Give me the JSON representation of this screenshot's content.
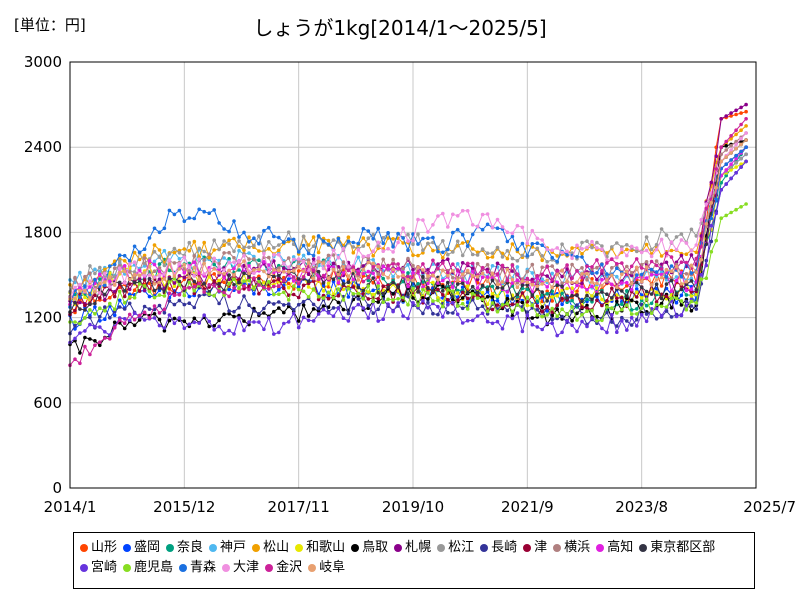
{
  "unit_label": "[単位：円]",
  "chart_data": {
    "type": "line",
    "title": "しょうが1kg[2014/1〜2025/5]",
    "xlabel": "",
    "ylabel": "",
    "x_start": "2014/1",
    "x_end": "2025/5",
    "x_axis_range": [
      "2014/1",
      "2025/7"
    ],
    "xticks": [
      "2014/1",
      "2015/12",
      "2017/11",
      "2019/10",
      "2021/9",
      "2023/8",
      "2025/7"
    ],
    "ylim": [
      0,
      3000
    ],
    "yticks": [
      0,
      600,
      1200,
      1800,
      2400,
      3000
    ],
    "grid": true,
    "legend_position": "bottom",
    "series": [
      {
        "name": "山形",
        "color": "#ff4500",
        "anchors": [
          [
            0,
            1260
          ],
          [
            6,
            1360
          ],
          [
            12,
            1400
          ],
          [
            24,
            1440
          ],
          [
            36,
            1470
          ],
          [
            48,
            1460
          ],
          [
            60,
            1480
          ],
          [
            72,
            1440
          ],
          [
            84,
            1420
          ],
          [
            96,
            1380
          ],
          [
            110,
            1420
          ],
          [
            126,
            1500
          ],
          [
            131,
            2600
          ],
          [
            136,
            2650
          ]
        ]
      },
      {
        "name": "盛岡",
        "color": "#0044ff",
        "anchors": [
          [
            0,
            1180
          ],
          [
            6,
            1240
          ],
          [
            12,
            1320
          ],
          [
            24,
            1380
          ],
          [
            36,
            1400
          ],
          [
            48,
            1420
          ],
          [
            60,
            1400
          ],
          [
            72,
            1360
          ],
          [
            84,
            1340
          ],
          [
            96,
            1300
          ],
          [
            110,
            1340
          ],
          [
            126,
            1380
          ],
          [
            131,
            2200
          ],
          [
            136,
            2350
          ]
        ]
      },
      {
        "name": "奈良",
        "color": "#00a080",
        "anchors": [
          [
            0,
            1300
          ],
          [
            6,
            1420
          ],
          [
            12,
            1520
          ],
          [
            24,
            1560
          ],
          [
            36,
            1540
          ],
          [
            48,
            1540
          ],
          [
            60,
            1520
          ],
          [
            72,
            1460
          ],
          [
            84,
            1400
          ],
          [
            96,
            1340
          ],
          [
            110,
            1320
          ],
          [
            126,
            1340
          ],
          [
            131,
            2150
          ],
          [
            136,
            2400
          ]
        ]
      },
      {
        "name": "神戸",
        "color": "#4fb8f0",
        "anchors": [
          [
            0,
            1420
          ],
          [
            6,
            1500
          ],
          [
            12,
            1580
          ],
          [
            24,
            1620
          ],
          [
            36,
            1600
          ],
          [
            48,
            1580
          ],
          [
            60,
            1560
          ],
          [
            72,
            1520
          ],
          [
            84,
            1500
          ],
          [
            96,
            1480
          ],
          [
            110,
            1460
          ],
          [
            126,
            1480
          ],
          [
            131,
            2300
          ],
          [
            136,
            2450
          ]
        ]
      },
      {
        "name": "松山",
        "color": "#f0a000",
        "anchors": [
          [
            0,
            1380
          ],
          [
            6,
            1500
          ],
          [
            12,
            1620
          ],
          [
            24,
            1680
          ],
          [
            36,
            1700
          ],
          [
            48,
            1720
          ],
          [
            60,
            1700
          ],
          [
            72,
            1680
          ],
          [
            84,
            1660
          ],
          [
            96,
            1640
          ],
          [
            110,
            1680
          ],
          [
            126,
            1700
          ],
          [
            131,
            2400
          ],
          [
            136,
            2550
          ]
        ]
      },
      {
        "name": "和歌山",
        "color": "#e8e800",
        "anchors": [
          [
            0,
            1320
          ],
          [
            6,
            1420
          ],
          [
            12,
            1500
          ],
          [
            24,
            1480
          ],
          [
            36,
            1460
          ],
          [
            48,
            1440
          ],
          [
            60,
            1400
          ],
          [
            72,
            1380
          ],
          [
            84,
            1360
          ],
          [
            96,
            1340
          ],
          [
            110,
            1360
          ],
          [
            126,
            1400
          ],
          [
            131,
            2200
          ],
          [
            136,
            2300
          ]
        ]
      },
      {
        "name": "鳥取",
        "color": "#000000",
        "anchors": [
          [
            0,
            950
          ],
          [
            6,
            1060
          ],
          [
            12,
            1160
          ],
          [
            24,
            1180
          ],
          [
            36,
            1200
          ],
          [
            48,
            1250
          ],
          [
            60,
            1320
          ],
          [
            72,
            1380
          ],
          [
            84,
            1300
          ],
          [
            96,
            1220
          ],
          [
            110,
            1260
          ],
          [
            126,
            1320
          ],
          [
            131,
            2400
          ],
          [
            136,
            2450
          ]
        ]
      },
      {
        "name": "札幌",
        "color": "#8a008a",
        "anchors": [
          [
            0,
            1250
          ],
          [
            6,
            1350
          ],
          [
            12,
            1420
          ],
          [
            24,
            1500
          ],
          [
            36,
            1520
          ],
          [
            48,
            1560
          ],
          [
            60,
            1540
          ],
          [
            72,
            1560
          ],
          [
            84,
            1520
          ],
          [
            96,
            1480
          ],
          [
            110,
            1460
          ],
          [
            126,
            1600
          ],
          [
            131,
            2600
          ],
          [
            136,
            2700
          ]
        ]
      },
      {
        "name": "松江",
        "color": "#999999",
        "anchors": [
          [
            0,
            1450
          ],
          [
            6,
            1520
          ],
          [
            12,
            1580
          ],
          [
            24,
            1660
          ],
          [
            36,
            1720
          ],
          [
            48,
            1740
          ],
          [
            60,
            1740
          ],
          [
            72,
            1720
          ],
          [
            84,
            1660
          ],
          [
            96,
            1640
          ],
          [
            110,
            1700
          ],
          [
            126,
            1800
          ],
          [
            131,
            2200
          ],
          [
            136,
            2350
          ]
        ]
      },
      {
        "name": "長崎",
        "color": "#333399",
        "anchors": [
          [
            0,
            1150
          ],
          [
            6,
            1200
          ],
          [
            12,
            1250
          ],
          [
            24,
            1320
          ],
          [
            36,
            1300
          ],
          [
            48,
            1280
          ],
          [
            60,
            1300
          ],
          [
            72,
            1280
          ],
          [
            84,
            1260
          ],
          [
            96,
            1240
          ],
          [
            110,
            1200
          ],
          [
            126,
            1280
          ],
          [
            131,
            2100
          ],
          [
            136,
            2300
          ]
        ]
      },
      {
        "name": "津",
        "color": "#990033",
        "anchors": [
          [
            0,
            1280
          ],
          [
            6,
            1360
          ],
          [
            12,
            1420
          ],
          [
            24,
            1440
          ],
          [
            36,
            1420
          ],
          [
            48,
            1400
          ],
          [
            60,
            1380
          ],
          [
            72,
            1360
          ],
          [
            84,
            1320
          ],
          [
            96,
            1300
          ],
          [
            110,
            1340
          ],
          [
            126,
            1400
          ],
          [
            131,
            2250
          ],
          [
            136,
            2400
          ]
        ]
      },
      {
        "name": "横浜",
        "color": "#b08080",
        "anchors": [
          [
            0,
            1400
          ],
          [
            6,
            1480
          ],
          [
            12,
            1540
          ],
          [
            24,
            1580
          ],
          [
            36,
            1600
          ],
          [
            48,
            1580
          ],
          [
            60,
            1560
          ],
          [
            72,
            1540
          ],
          [
            84,
            1520
          ],
          [
            96,
            1500
          ],
          [
            110,
            1520
          ],
          [
            126,
            1540
          ],
          [
            131,
            2350
          ],
          [
            136,
            2500
          ]
        ]
      },
      {
        "name": "高知",
        "color": "#e020e0",
        "anchors": [
          [
            0,
            1340
          ],
          [
            6,
            1440
          ],
          [
            12,
            1520
          ],
          [
            24,
            1560
          ],
          [
            36,
            1540
          ],
          [
            48,
            1520
          ],
          [
            60,
            1500
          ],
          [
            72,
            1480
          ],
          [
            84,
            1460
          ],
          [
            96,
            1420
          ],
          [
            110,
            1440
          ],
          [
            126,
            1460
          ],
          [
            131,
            2200
          ],
          [
            136,
            2400
          ]
        ]
      },
      {
        "name": "東京都区部",
        "color": "#333344",
        "anchors": [
          [
            0,
            1280
          ],
          [
            6,
            1360
          ],
          [
            12,
            1420
          ],
          [
            24,
            1440
          ],
          [
            36,
            1460
          ],
          [
            48,
            1460
          ],
          [
            60,
            1440
          ],
          [
            72,
            1420
          ],
          [
            84,
            1400
          ],
          [
            96,
            1380
          ],
          [
            110,
            1380
          ],
          [
            126,
            1400
          ],
          [
            131,
            2300
          ],
          [
            136,
            2450
          ]
        ]
      },
      {
        "name": "宮崎",
        "color": "#6633dd",
        "anchors": [
          [
            0,
            1060
          ],
          [
            6,
            1120
          ],
          [
            12,
            1160
          ],
          [
            24,
            1180
          ],
          [
            36,
            1120
          ],
          [
            48,
            1200
          ],
          [
            60,
            1240
          ],
          [
            72,
            1260
          ],
          [
            84,
            1200
          ],
          [
            96,
            1140
          ],
          [
            110,
            1160
          ],
          [
            126,
            1300
          ],
          [
            131,
            2100
          ],
          [
            136,
            2300
          ]
        ]
      },
      {
        "name": "鹿児島",
        "color": "#88dd22",
        "anchors": [
          [
            0,
            1200
          ],
          [
            6,
            1280
          ],
          [
            12,
            1360
          ],
          [
            24,
            1420
          ],
          [
            36,
            1400
          ],
          [
            48,
            1380
          ],
          [
            60,
            1360
          ],
          [
            72,
            1340
          ],
          [
            84,
            1300
          ],
          [
            96,
            1260
          ],
          [
            110,
            1240
          ],
          [
            126,
            1300
          ],
          [
            131,
            1900
          ],
          [
            136,
            2000
          ]
        ]
      },
      {
        "name": "青森",
        "color": "#1a70e0",
        "anchors": [
          [
            0,
            1300
          ],
          [
            6,
            1460
          ],
          [
            12,
            1650
          ],
          [
            20,
            1900
          ],
          [
            24,
            1960
          ],
          [
            36,
            1800
          ],
          [
            48,
            1700
          ],
          [
            60,
            1780
          ],
          [
            72,
            1700
          ],
          [
            84,
            1800
          ],
          [
            96,
            1640
          ],
          [
            110,
            1500
          ],
          [
            126,
            1520
          ],
          [
            131,
            2250
          ],
          [
            136,
            2400
          ]
        ]
      },
      {
        "name": "大津",
        "color": "#f090e0",
        "anchors": [
          [
            0,
            1360
          ],
          [
            6,
            1440
          ],
          [
            12,
            1520
          ],
          [
            24,
            1560
          ],
          [
            36,
            1580
          ],
          [
            48,
            1600
          ],
          [
            60,
            1640
          ],
          [
            72,
            1860
          ],
          [
            84,
            1900
          ],
          [
            96,
            1700
          ],
          [
            110,
            1660
          ],
          [
            126,
            1700
          ],
          [
            131,
            2300
          ],
          [
            136,
            2500
          ]
        ]
      },
      {
        "name": "金沢",
        "color": "#cc2299",
        "anchors": [
          [
            0,
            880
          ],
          [
            6,
            980
          ],
          [
            12,
            1200
          ],
          [
            24,
            1360
          ],
          [
            36,
            1440
          ],
          [
            48,
            1500
          ],
          [
            60,
            1520
          ],
          [
            72,
            1540
          ],
          [
            84,
            1520
          ],
          [
            96,
            1500
          ],
          [
            110,
            1560
          ],
          [
            126,
            1600
          ],
          [
            131,
            2400
          ],
          [
            136,
            2600
          ]
        ]
      },
      {
        "name": "岐阜",
        "color": "#e8a070",
        "anchors": [
          [
            0,
            1340
          ],
          [
            6,
            1420
          ],
          [
            12,
            1480
          ],
          [
            24,
            1520
          ],
          [
            36,
            1540
          ],
          [
            48,
            1540
          ],
          [
            60,
            1520
          ],
          [
            72,
            1500
          ],
          [
            84,
            1480
          ],
          [
            96,
            1460
          ],
          [
            110,
            1480
          ],
          [
            126,
            1500
          ],
          [
            131,
            2300
          ],
          [
            136,
            2450
          ]
        ]
      }
    ]
  }
}
